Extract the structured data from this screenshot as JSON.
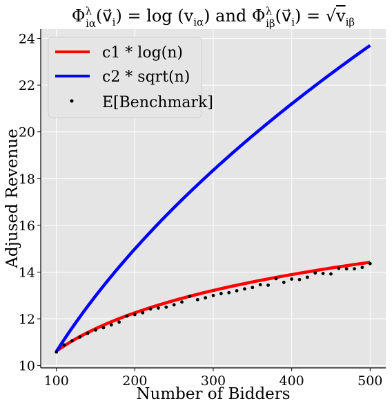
{
  "chart_data": {
    "type": "line",
    "title_parts": {
      "phi1": "Φ",
      "sup1": "λ",
      "sub1": "iα",
      "arg1": "(v⃗",
      "arg1_sub": "i",
      "arg1_close": ")",
      "eq1": " = log (v",
      "eq1_sub": "iα",
      "eq1_close": ")",
      "and": " and ",
      "phi2": "Φ",
      "sup2": "λ",
      "sub2": "iβ",
      "arg2": "(v⃗",
      "arg2_sub": "i",
      "arg2_close": ")",
      "eq2": " = ",
      "sqrt_sym": "√",
      "sqrt_arg": "v",
      "sqrt_arg_sub": "iβ"
    },
    "xlabel": "Number of Bidders",
    "ylabel": "Adjused Revenue",
    "xlim": [
      80,
      520
    ],
    "ylim": [
      9.9,
      24.4
    ],
    "xticks": [
      100,
      200,
      300,
      400,
      500
    ],
    "yticks": [
      10,
      12,
      14,
      16,
      18,
      20,
      22,
      24
    ],
    "grid": true,
    "legend_placement": "top-left",
    "background_color": "#e5e5e5",
    "grid_color": "#ffffff",
    "series": [
      {
        "name": "c1 * log(n)",
        "style": "line",
        "color": "#ff0000",
        "formula_note": "c1 * log(n)",
        "x": [
          100,
          120,
          140,
          160,
          180,
          200,
          220,
          240,
          260,
          280,
          300,
          320,
          340,
          360,
          380,
          400,
          420,
          440,
          460,
          480,
          500
        ],
        "y": [
          10.62,
          10.98,
          11.29,
          11.56,
          11.8,
          12.02,
          12.22,
          12.4,
          12.56,
          12.72,
          12.86,
          13.0,
          13.13,
          13.25,
          13.37,
          13.48,
          13.58,
          13.68,
          13.78,
          13.87,
          14.42
        ]
      },
      {
        "name": "c2 * sqrt(n)",
        "style": "line",
        "color": "#0000ff",
        "x": [
          100,
          120,
          140,
          160,
          180,
          200,
          220,
          240,
          260,
          280,
          300,
          320,
          340,
          360,
          380,
          400,
          420,
          440,
          460,
          480,
          500
        ],
        "y": [
          10.6,
          11.61,
          12.54,
          13.41,
          14.22,
          14.99,
          15.72,
          16.42,
          17.09,
          17.74,
          18.36,
          18.96,
          19.54,
          20.11,
          20.66,
          21.2,
          21.72,
          22.23,
          22.73,
          23.22,
          23.7
        ]
      },
      {
        "name": "E[Benchmark]",
        "style": "dots",
        "color": "#000000",
        "x": [
          100,
          110,
          120,
          130,
          140,
          150,
          160,
          170,
          180,
          190,
          200,
          210,
          220,
          230,
          240,
          250,
          260,
          270,
          280,
          290,
          300,
          310,
          320,
          330,
          340,
          350,
          360,
          370,
          380,
          390,
          400,
          410,
          420,
          430,
          440,
          450,
          460,
          470,
          480,
          490,
          500
        ],
        "y": [
          10.58,
          10.88,
          11.06,
          11.22,
          11.38,
          11.52,
          11.62,
          11.74,
          11.86,
          12.12,
          12.18,
          12.26,
          12.42,
          12.46,
          12.5,
          12.6,
          12.72,
          12.96,
          12.82,
          12.9,
          13.0,
          13.08,
          13.12,
          13.2,
          13.28,
          13.34,
          13.46,
          13.44,
          13.72,
          13.56,
          13.7,
          13.68,
          13.78,
          13.96,
          13.94,
          13.92,
          14.16,
          14.14,
          14.14,
          14.2,
          14.36
        ]
      }
    ]
  }
}
